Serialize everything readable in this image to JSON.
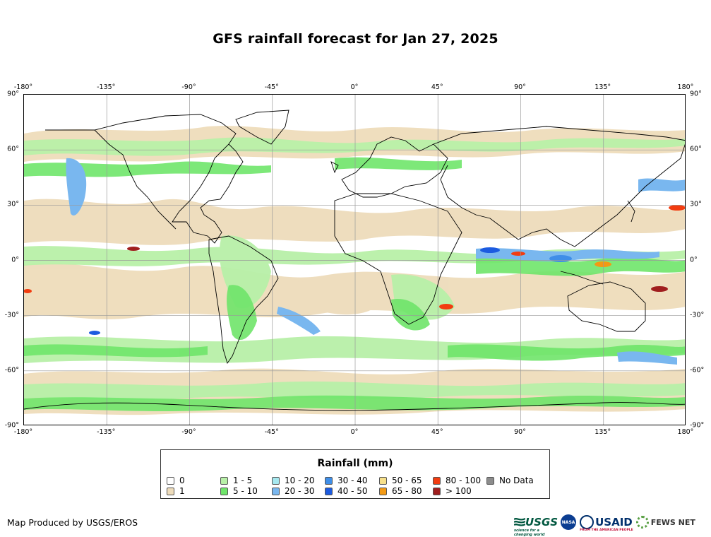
{
  "title": "GFS rainfall forecast for Jan 27, 2025",
  "map": {
    "lon_ticks": [
      "-180°",
      "-135°",
      "-90°",
      "-45°",
      "0°",
      "45°",
      "90°",
      "135°",
      "180°"
    ],
    "lat_ticks": [
      "90°",
      "60°",
      "30°",
      "0°",
      "-30°",
      "-60°",
      "-90°"
    ]
  },
  "legend": {
    "title": "Rainfall (mm)",
    "items": [
      {
        "label": "0",
        "color": "#ffffff"
      },
      {
        "label": "1",
        "color": "#eedcbb"
      },
      {
        "label": "1 - 5",
        "color": "#b8f0a8"
      },
      {
        "label": "5 - 10",
        "color": "#6fe56a"
      },
      {
        "label": "10 - 20",
        "color": "#a6e8ef"
      },
      {
        "label": "20 - 30",
        "color": "#79b7ef"
      },
      {
        "label": "30 - 40",
        "color": "#3f8ee8"
      },
      {
        "label": "40 - 50",
        "color": "#1c5be0"
      },
      {
        "label": "50 - 65",
        "color": "#f7e08a"
      },
      {
        "label": "65 - 80",
        "color": "#f39a14"
      },
      {
        "label": "80 - 100",
        "color": "#f23c10"
      },
      {
        "label": "> 100",
        "color": "#a01e1e"
      },
      {
        "label": "No Data",
        "color": "#8c8c8c"
      }
    ]
  },
  "credit": "Map Produced by USGS/EROS",
  "logos": {
    "usgs": "USGS",
    "usgs_tagline": "science for a changing world",
    "nasa": "NASA",
    "usaid": "USAID",
    "usaid_tagline": "FROM THE AMERICAN PEOPLE",
    "fews": "FEWS NET"
  },
  "icons": {
    "usgs": "usgs-logo-icon",
    "nasa": "nasa-logo-icon",
    "usaid": "usaid-seal-icon",
    "fews": "fews-net-logo-icon"
  }
}
